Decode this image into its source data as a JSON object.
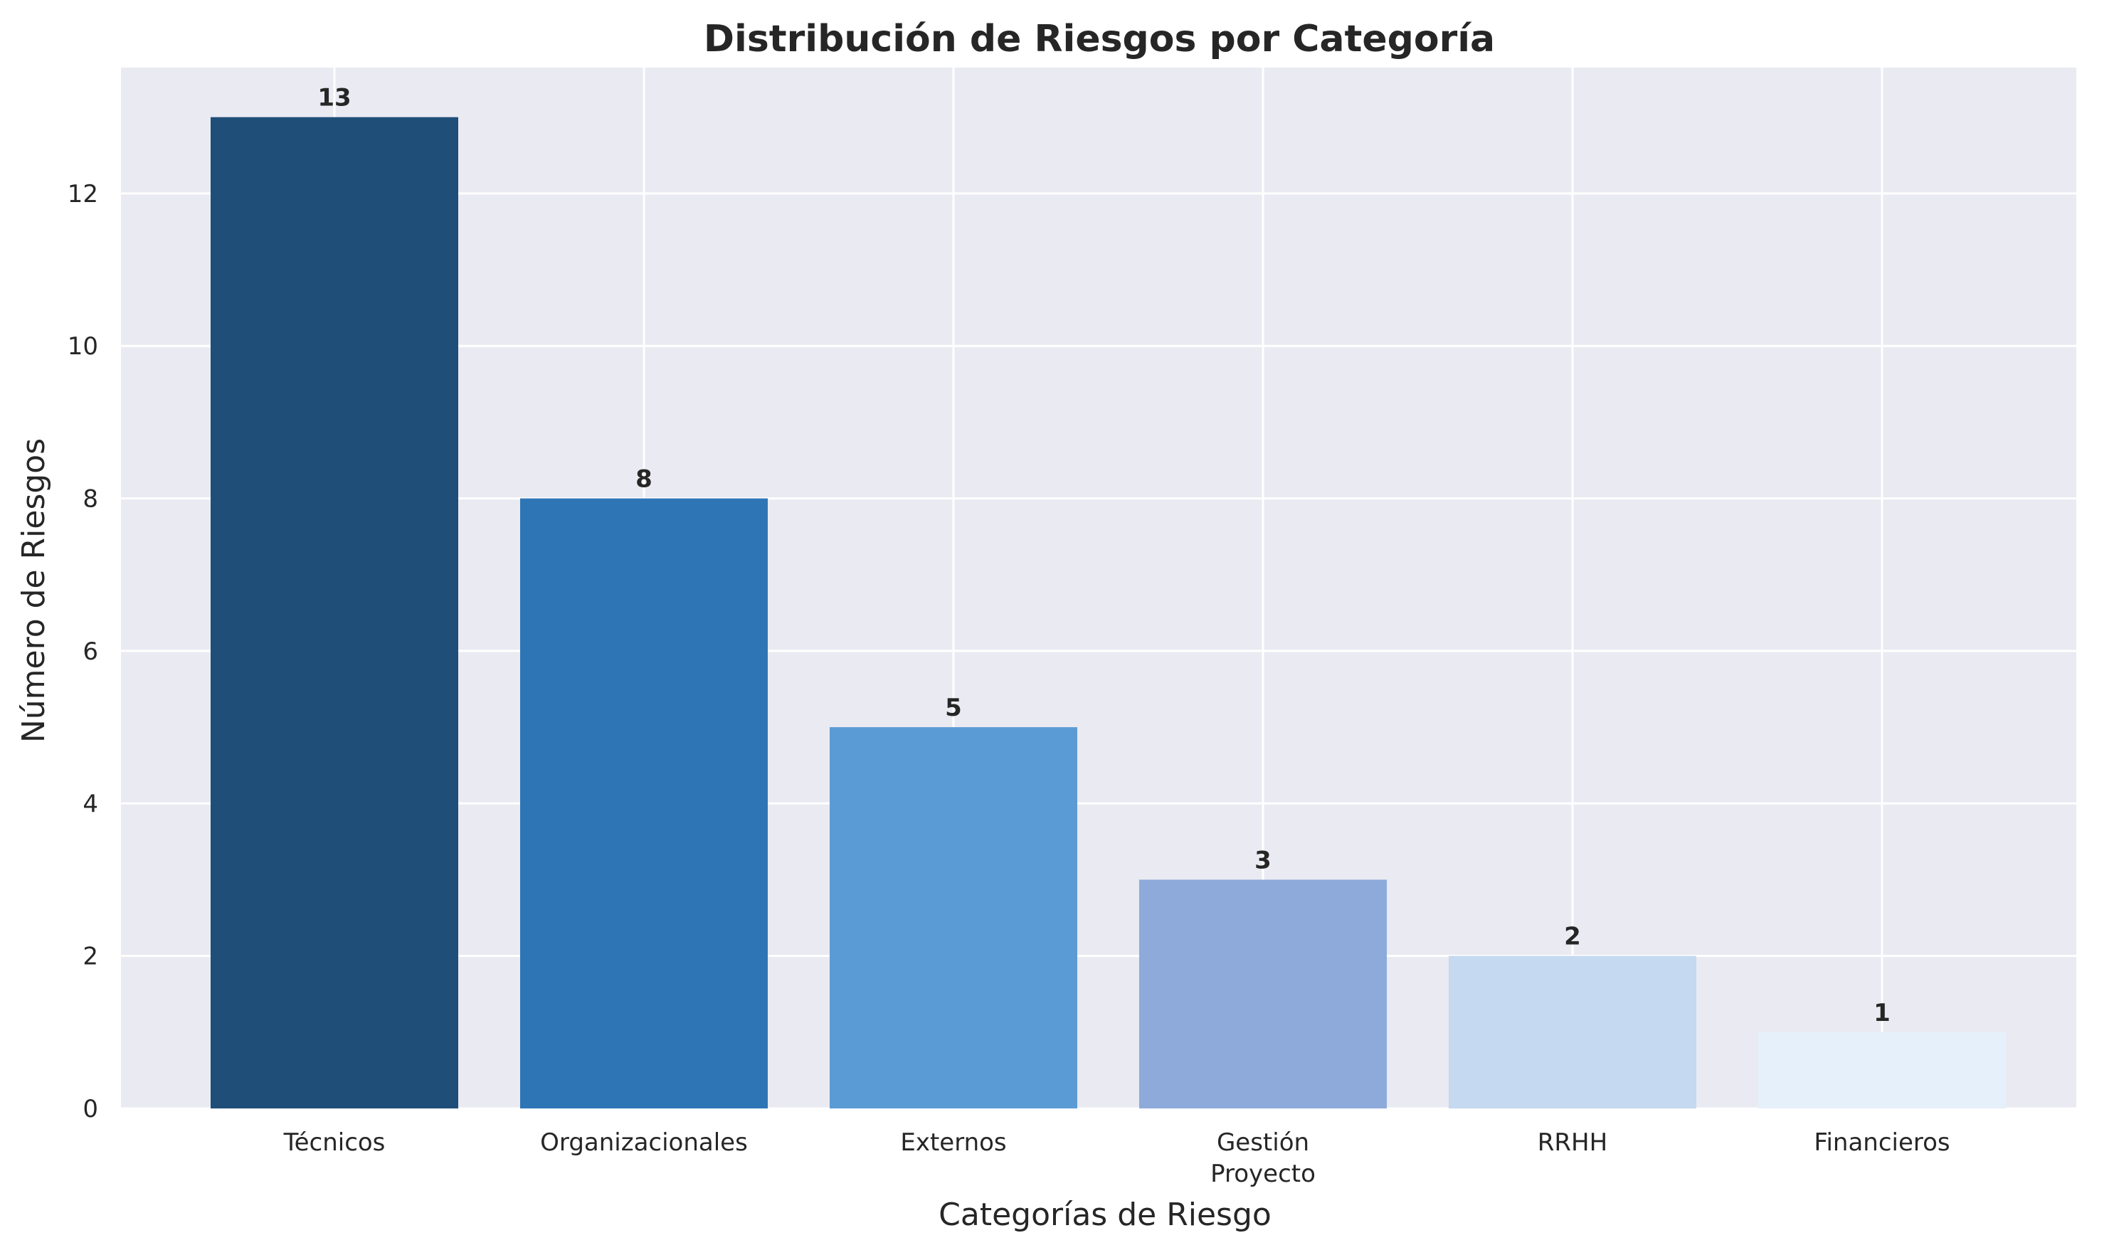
{
  "chart_data": {
    "type": "bar",
    "title": "Distribución de Riesgos por Categoría",
    "xlabel": "Categorías de Riesgo",
    "ylabel": "Número de Riesgos",
    "categories": [
      "Técnicos",
      "Organizacionales",
      "Externos",
      "Gestión\nProyecto",
      "RRHH",
      "Financieros"
    ],
    "values": [
      13,
      8,
      5,
      3,
      2,
      1
    ],
    "bar_colors": [
      "#1f4e79",
      "#2e75b6",
      "#5b9bd5",
      "#8eaadb",
      "#c5d9f0",
      "#e6f0fb"
    ],
    "ylim": [
      0,
      13.65
    ],
    "yticks": [
      0,
      2,
      4,
      6,
      8,
      10,
      12
    ],
    "grid": true,
    "background": "#eaeaf2",
    "grid_color": "#ffffff"
  }
}
